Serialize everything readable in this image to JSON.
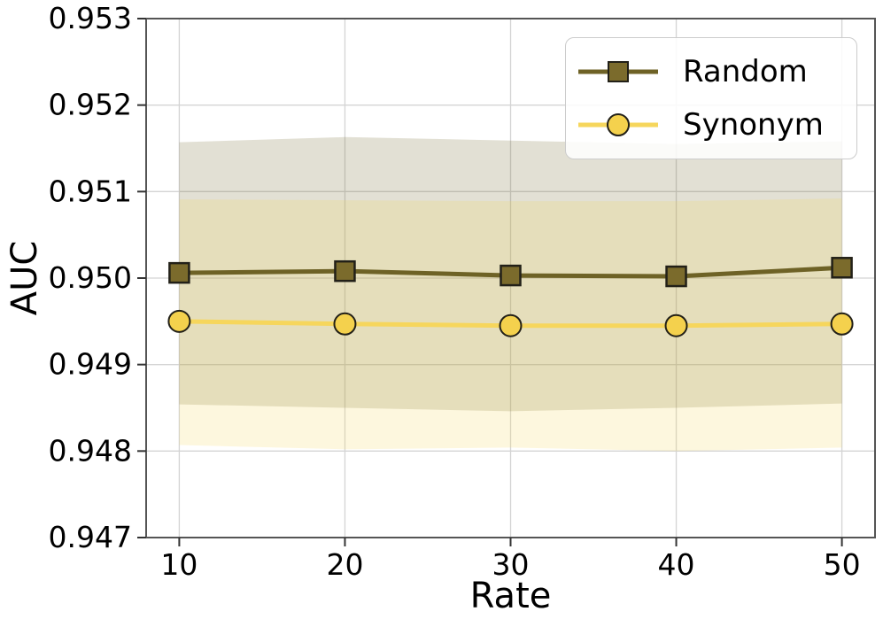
{
  "chart_data": {
    "type": "line",
    "title": "",
    "xlabel": "Rate",
    "ylabel": "AUC",
    "x": [
      10,
      20,
      30,
      40,
      50
    ],
    "x_ticks": [
      "10",
      "20",
      "30",
      "40",
      "50"
    ],
    "y_ticks": [
      "0.953",
      "0.952",
      "0.951",
      "0.950",
      "0.949",
      "0.948",
      "0.947"
    ],
    "xlim": [
      8,
      52
    ],
    "ylim": [
      0.947,
      0.953
    ],
    "grid": true,
    "legend_position": "upper right",
    "series": [
      {
        "name": "Random",
        "marker": "square",
        "color": "#6e6226",
        "marker_fill": "#7b6b2c",
        "values": [
          0.95006,
          0.95008,
          0.95003,
          0.95002,
          0.95012
        ],
        "band_upper": [
          0.95157,
          0.95163,
          0.95159,
          0.95155,
          0.95158
        ],
        "band_lower": [
          0.94854,
          0.9485,
          0.94846,
          0.9485,
          0.94855
        ]
      },
      {
        "name": "Synonym",
        "marker": "circle",
        "color": "#f6d65c",
        "marker_fill": "#f4d14d",
        "values": [
          0.9495,
          0.94947,
          0.94945,
          0.94945,
          0.94947
        ],
        "band_upper": [
          0.95091,
          0.9509,
          0.95089,
          0.95089,
          0.95092
        ],
        "band_lower": [
          0.94807,
          0.94802,
          0.94804,
          0.948,
          0.94804
        ]
      }
    ]
  },
  "style": {
    "background": "#ffffff",
    "grid_color": "#d4d4d4",
    "spine_color": "#555555",
    "tick_color": "#333333",
    "text_color": "#000000",
    "marker_edge": "#222018",
    "band_opacity": 0.2,
    "legend_border": "#cccccc",
    "tick_font_size": 33,
    "axis_font_size": 40,
    "legend_font_size": 34
  }
}
